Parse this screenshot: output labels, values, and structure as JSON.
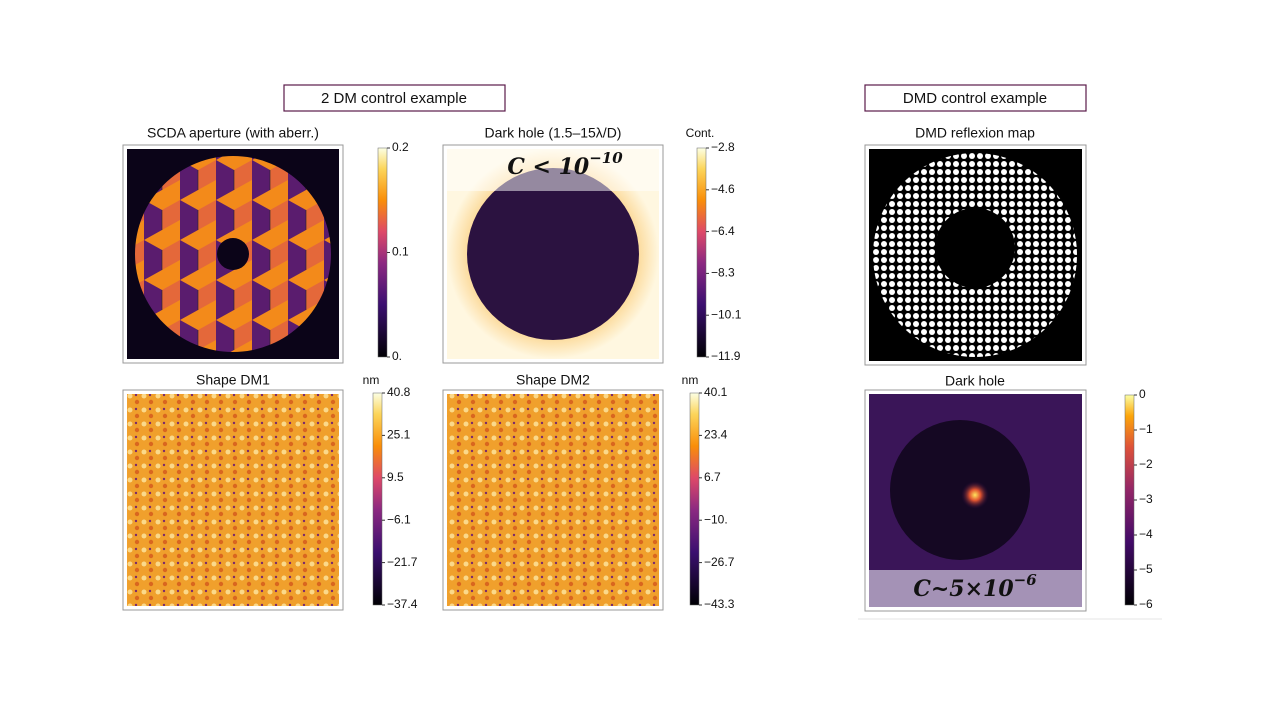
{
  "sections": [
    {
      "title": "2 DM control example"
    },
    {
      "title": "DMD control example"
    }
  ],
  "panels": [
    {
      "title": "SCDA aperture (with aberr.)",
      "colorbar_unit": null,
      "ticks": [
        "0.2",
        "0.1",
        "0."
      ]
    },
    {
      "title": "Dark hole (1.5–15λ/D)",
      "colorbar_unit": "Cont.",
      "ticks": [
        "−2.8",
        "−4.6",
        "−6.4",
        "−8.3",
        "−10.1",
        "−11.9"
      ],
      "annotation": {
        "base": "C < 10",
        "exponent": "−10"
      }
    },
    {
      "title": "Shape DM1",
      "colorbar_unit": "nm",
      "ticks": [
        "40.8",
        "25.1",
        "9.5",
        "−6.1",
        "−21.7",
        "−37.4"
      ]
    },
    {
      "title": "Shape DM2",
      "colorbar_unit": "nm",
      "ticks": [
        "40.1",
        "23.4",
        "6.7",
        "−10.",
        "−26.7",
        "−43.3"
      ]
    },
    {
      "title": "DMD reflexion map",
      "colorbar_unit": null,
      "ticks": null
    },
    {
      "title": "Dark hole",
      "colorbar_unit": null,
      "ticks": [
        "0",
        "−1",
        "−2",
        "−3",
        "−4",
        "−5",
        "−6"
      ],
      "annotation": {
        "base": "C~5×10",
        "exponent": "−6"
      }
    }
  ]
}
